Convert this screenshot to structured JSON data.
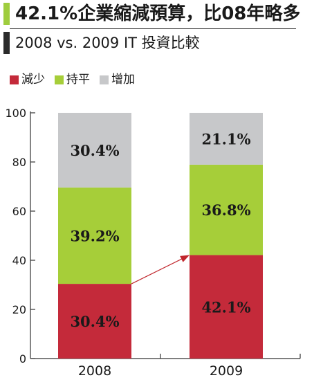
{
  "header": {
    "title": "42.1%企業縮減預算，比08年略多",
    "subtitle": "2008 vs. 2009 IT 投資比較"
  },
  "colors": {
    "title_accent": "#9fcd3e",
    "subtitle_accent": "#2b2b2b",
    "arrow": "#c1272d"
  },
  "chart_data": {
    "type": "bar",
    "stacked": true,
    "categories": [
      "2008",
      "2009"
    ],
    "series": [
      {
        "name": "減少",
        "color": "#c42a3a",
        "values": [
          30.4,
          42.1
        ],
        "labels": [
          "30.4%",
          "42.1%"
        ]
      },
      {
        "name": "持平",
        "color": "#a6ce39",
        "values": [
          39.2,
          36.8
        ],
        "labels": [
          "39.2%",
          "36.8%"
        ]
      },
      {
        "name": "增加",
        "color": "#c7c8ca",
        "values": [
          30.4,
          21.1
        ],
        "labels": [
          "30.4%",
          "21.1%"
        ]
      }
    ],
    "yticks": [
      "0",
      "20",
      "40",
      "60",
      "80",
      "100"
    ],
    "ytick_values": [
      0,
      20,
      40,
      60,
      80,
      100
    ],
    "ylim": [
      0,
      100
    ],
    "legend_position": "top-left",
    "grid": false,
    "annotation": "arrow from the top of the 2008 減少 segment to the top of the 2009 減少 segment"
  }
}
